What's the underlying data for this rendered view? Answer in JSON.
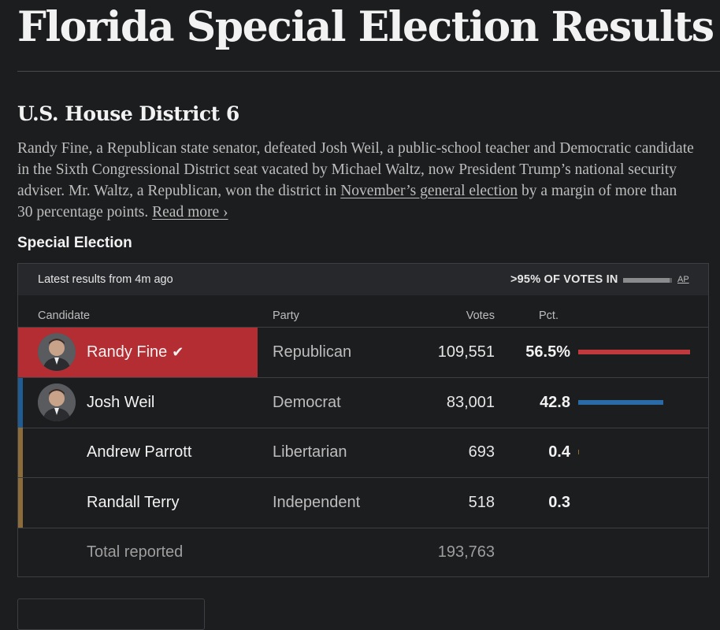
{
  "page": {
    "title": "Florida Special Election Results"
  },
  "race": {
    "title": "U.S. House District 6",
    "summary": {
      "text_before": "Randy Fine, a Republican state senator, defeated Josh Weil, a public-school teacher and Democratic candidate in the Sixth Congressional District seat vacated by Michael Waltz, now President Trump’s national security adviser. Mr. Waltz, a Republican, won the district in ",
      "link_text": "November’s general election",
      "text_after": " by a margin of more than 30 percentage points. ",
      "read_more": "Read more ›"
    }
  },
  "results": {
    "section_label": "Special Election",
    "latest": "Latest results from 4m ago",
    "votes_in": ">95% OF VOTES IN",
    "votes_in_fraction": 0.95,
    "source": "AP",
    "headers": {
      "candidate": "Candidate",
      "party": "Party",
      "votes": "Votes",
      "pct": "Pct."
    },
    "candidates": [
      {
        "name": "Randy Fine",
        "winner": true,
        "party": "Republican",
        "votes": "109,551",
        "pct": "56.5%",
        "pct_value": 56.5,
        "party_color": "#b32d32",
        "has_photo": true
      },
      {
        "name": "Josh Weil",
        "winner": false,
        "party": "Democrat",
        "votes": "83,001",
        "pct": "42.8",
        "pct_value": 42.8,
        "party_color": "#1f5c93",
        "has_photo": true
      },
      {
        "name": "Andrew Parrott",
        "winner": false,
        "party": "Libertarian",
        "votes": "693",
        "pct": "0.4",
        "pct_value": 0.4,
        "party_color": "#8c6d3a",
        "has_photo": false
      },
      {
        "name": "Randall Terry",
        "winner": false,
        "party": "Independent",
        "votes": "518",
        "pct": "0.3",
        "pct_value": 0.3,
        "party_color": "#8c6d3a",
        "has_photo": false
      }
    ],
    "total": {
      "label": "Total reported",
      "votes": "193,763"
    },
    "check_icon": "check-icon"
  }
}
